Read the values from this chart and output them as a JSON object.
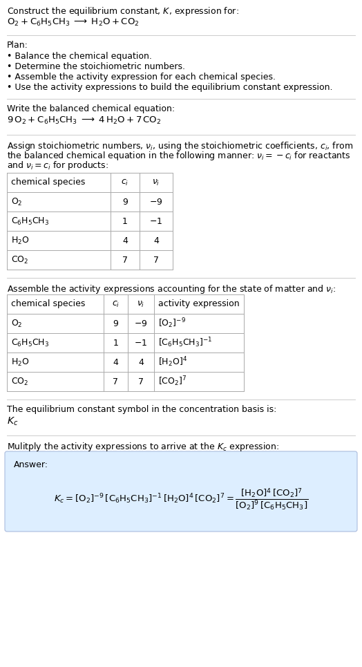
{
  "title_line1": "Construct the equilibrium constant, $K$, expression for:",
  "title_line2": "$\\mathrm{O_2 + C_6H_5CH_3 \\;\\longrightarrow\\; H_2O + CO_2}$",
  "plan_header": "Plan:",
  "plan_items": [
    "• Balance the chemical equation.",
    "• Determine the stoichiometric numbers.",
    "• Assemble the activity expression for each chemical species.",
    "• Use the activity expressions to build the equilibrium constant expression."
  ],
  "balanced_header": "Write the balanced chemical equation:",
  "balanced_eq": "$\\mathrm{9\\,O_2 + C_6H_5CH_3 \\;\\longrightarrow\\; 4\\,H_2O + 7\\,CO_2}$",
  "stoich_header_lines": [
    "Assign stoichiometric numbers, $\\nu_i$, using the stoichiometric coefficients, $c_i$, from",
    "the balanced chemical equation in the following manner: $\\nu_i = -c_i$ for reactants",
    "and $\\nu_i = c_i$ for products:"
  ],
  "table1_headers": [
    "chemical species",
    "$c_i$",
    "$\\nu_i$"
  ],
  "table1_rows": [
    [
      "$\\mathrm{O_2}$",
      "9",
      "$-9$"
    ],
    [
      "$\\mathrm{C_6H_5CH_3}$",
      "1",
      "$-1$"
    ],
    [
      "$\\mathrm{H_2O}$",
      "4",
      "4"
    ],
    [
      "$\\mathrm{CO_2}$",
      "7",
      "7"
    ]
  ],
  "activity_header": "Assemble the activity expressions accounting for the state of matter and $\\nu_i$:",
  "table2_headers": [
    "chemical species",
    "$c_i$",
    "$\\nu_i$",
    "activity expression"
  ],
  "table2_rows": [
    [
      "$\\mathrm{O_2}$",
      "9",
      "$-9$",
      "$[\\mathrm{O_2}]^{-9}$"
    ],
    [
      "$\\mathrm{C_6H_5CH_3}$",
      "1",
      "$-1$",
      "$[\\mathrm{C_6H_5CH_3}]^{-1}$"
    ],
    [
      "$\\mathrm{H_2O}$",
      "4",
      "4",
      "$[\\mathrm{H_2O}]^{4}$"
    ],
    [
      "$\\mathrm{CO_2}$",
      "7",
      "7",
      "$[\\mathrm{CO_2}]^{7}$"
    ]
  ],
  "kc_symbol_text": "The equilibrium constant symbol in the concentration basis is:",
  "kc_symbol": "$K_c$",
  "multiply_header": "Mulitply the activity expressions to arrive at the $K_c$ expression:",
  "answer_label": "Answer:",
  "kc_expr_left": "$K_c = [\\mathrm{O_2}]^{-9}\\,[\\mathrm{C_6H_5CH_3}]^{-1}\\,[\\mathrm{H_2O}]^{4}\\,[\\mathrm{CO_2}]^{7} = \\dfrac{[\\mathrm{H_2O}]^{4}\\,[\\mathrm{CO_2}]^{7}}{[\\mathrm{O_2}]^{9}\\,[\\mathrm{C_6H_5CH_3}]}$",
  "bg_color": "#ffffff",
  "answer_box_color": "#ddeeff",
  "table_line_color": "#aaaaaa",
  "section_line_color": "#cccccc",
  "text_color": "#000000",
  "font_size": 9.5,
  "small_font_size": 9.0
}
